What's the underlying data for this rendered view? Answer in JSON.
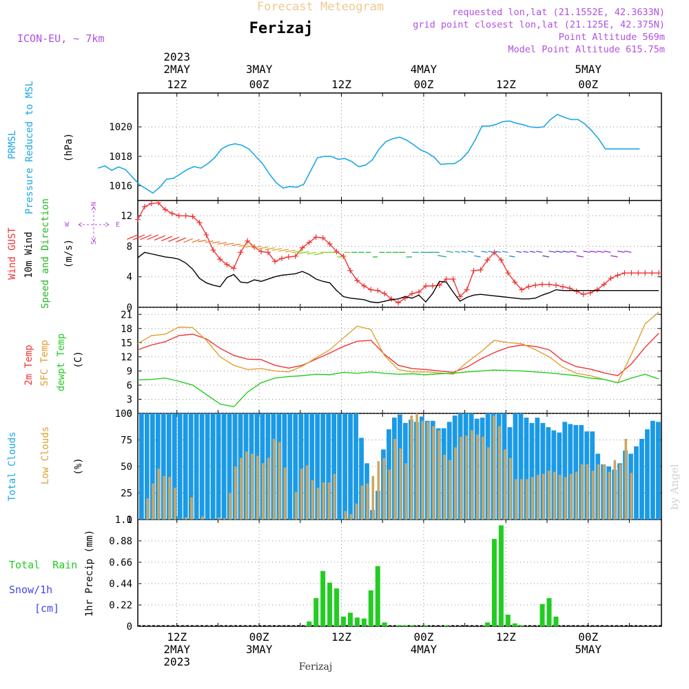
{
  "header": {
    "super_title": "Forecast Meteogram",
    "location": "Ferizaj",
    "model": "ICON-EU, ~ 7km",
    "info_lines": [
      "requested lon,lat (21.1552E, 42.3633N)",
      "grid point closest lon,lat (21.125E, 42.375N)",
      "Point Altitude 569m",
      "Model Point Altitude 615.75m"
    ],
    "footer_location": "Ferizaj",
    "watermark": "by Angel"
  },
  "colors": {
    "pressure": "#1aa7e6",
    "gust": "#ee3333",
    "wind": "#000000",
    "direction_label": "#22bb22",
    "temp": "#ee3333",
    "sfc_temp": "#e0a030",
    "dewpoint": "#22cc22",
    "total_clouds": "#1a9ae6",
    "low_clouds": "#cfa65e",
    "rain": "#22cc22",
    "snow_label": "#4444ee",
    "info": "#b050e0"
  },
  "time_axis": {
    "top_ticks": [
      {
        "day": "2023\n2MAY",
        "hour": "12Z",
        "t": 12
      },
      {
        "day": "3MAY",
        "hour": "00Z",
        "t": 24
      },
      {
        "day": "",
        "hour": "12Z",
        "t": 36
      },
      {
        "day": "4MAY",
        "hour": "00Z",
        "t": 48
      },
      {
        "day": "",
        "hour": "12Z",
        "t": 60
      },
      {
        "day": "5MAY",
        "hour": "00Z",
        "t": 72
      }
    ],
    "bottom_ticks": [
      {
        "hour": "12Z",
        "day": "2MAY",
        "year": "2023",
        "t": 12
      },
      {
        "hour": "00Z",
        "day": "3MAY",
        "year": "",
        "t": 24
      },
      {
        "hour": "12Z",
        "day": "",
        "year": "",
        "t": 36
      },
      {
        "hour": "00Z",
        "day": "4MAY",
        "year": "",
        "t": 48
      },
      {
        "hour": "12Z",
        "day": "",
        "year": "",
        "t": 60
      },
      {
        "hour": "00Z",
        "day": "5MAY",
        "year": "",
        "t": 72
      }
    ]
  },
  "panels": {
    "pressure": {
      "label1": "PRMSL",
      "label2": "Pressure Reduced to MSL",
      "unit": "(hPa)"
    },
    "wind": {
      "gust_label": "Wind GUST",
      "wind_label": "10m Wind",
      "dir_label": "Speed and Direction",
      "unit": "(m/s)",
      "compass_n": "N",
      "compass_s": "S",
      "compass_w": "W",
      "compass_e": "E"
    },
    "temp": {
      "t2m_label": "2m Temp",
      "sfc_label": "SFC Temp",
      "dew_label": "dewpt Temp",
      "unit": "(C)"
    },
    "clouds": {
      "total_label": "Total Clouds",
      "low_label": "Low Clouds",
      "unit": "(%)"
    },
    "precip": {
      "rain_label": "Total  Rain",
      "snow_label": "Snow/1h",
      "snow_unit": "[cm]",
      "axis_label": "1hr Precip (mm)"
    }
  },
  "chart_data": [
    {
      "type": "line",
      "title": "PRMSL Pressure Reduced to MSL",
      "ylabel": "(hPa)",
      "ylim": [
        1015,
        1022.3
      ],
      "yticks": [
        1016,
        1018,
        1020
      ],
      "x": [
        1,
        2,
        3,
        4,
        5,
        6,
        7,
        8,
        9,
        10,
        11,
        12,
        13,
        14,
        15,
        16,
        17,
        18,
        19,
        20,
        21,
        22,
        23,
        24,
        25,
        26,
        27,
        28,
        29,
        30,
        31,
        32,
        33,
        34,
        35,
        36,
        37,
        38,
        39,
        40,
        41,
        42,
        43,
        44,
        45,
        46,
        47,
        48,
        49,
        50,
        51,
        52,
        53,
        54,
        55,
        56,
        57,
        58,
        59,
        60,
        61,
        62,
        63,
        64,
        65,
        66,
        67,
        68,
        69,
        70,
        70,
        71,
        72,
        73,
        74,
        75,
        76,
        77,
        78,
        79
      ],
      "series": [
        {
          "name": "PRMSL",
          "values": [
            1017.2,
            1017.35,
            1017.05,
            1017.28,
            1017.1,
            1016.6,
            1016.1,
            1015.8,
            1015.5,
            1015.9,
            1016.45,
            1016.5,
            1016.8,
            1017.1,
            1017.3,
            1017.2,
            1017.5,
            1017.9,
            1018.5,
            1018.75,
            1018.85,
            1018.75,
            1018.5,
            1018.0,
            1017.5,
            1016.8,
            1016.2,
            1015.85,
            1015.95,
            1015.9,
            1016.1,
            1017.0,
            1017.9,
            1018.0,
            1018.0,
            1017.8,
            1017.85,
            1017.65,
            1017.3,
            1017.4,
            1017.75,
            1018.5,
            1019.0,
            1019.2,
            1019.3,
            1019.1,
            1018.8,
            1018.45,
            1018.25,
            1017.95,
            1017.45,
            1017.5,
            1017.5,
            1017.8,
            1018.3,
            1019.1,
            1020.05,
            1020.05,
            1020.15,
            1020.35,
            1020.4,
            1020.25,
            1020.15,
            1020.0,
            1019.95,
            1020.0,
            1020.5,
            1020.85,
            1020.65,
            1020.5,
            1020.5,
            1020.2,
            1019.75,
            1019.2,
            1018.5,
            1018.5,
            1018.5,
            1018.5,
            1018.5,
            1018.5
          ]
        }
      ]
    },
    {
      "type": "line",
      "title": "Wind GUST / 10m Wind Speed and Direction",
      "ylabel": "(m/s)",
      "ylim": [
        0,
        14
      ],
      "yticks": [
        0,
        4,
        8,
        12
      ],
      "x_hours": [
        0,
        1,
        2,
        3,
        4,
        5,
        6,
        7,
        8,
        9,
        10,
        11,
        12,
        13,
        14,
        15,
        16,
        17,
        18,
        19,
        20,
        21,
        22,
        23,
        24,
        25,
        26,
        27,
        28,
        29,
        30,
        31,
        32,
        33,
        34,
        35,
        36,
        37,
        38,
        39,
        40,
        41,
        42,
        43,
        44,
        45,
        46,
        47,
        48,
        49,
        50,
        51,
        52,
        53,
        54,
        55,
        56,
        57,
        58,
        59,
        60,
        61,
        62,
        63,
        64,
        65,
        66,
        67,
        68,
        69,
        70,
        71,
        72,
        73,
        74,
        75,
        76
      ],
      "series": [
        {
          "name": "Wind GUST",
          "values": [
            11.5,
            13.2,
            13.6,
            13.7,
            12.8,
            12.3,
            12.0,
            12.0,
            11.9,
            11.1,
            9.5,
            7.5,
            6.3,
            5.6,
            5.1,
            7.2,
            8.7,
            7.9,
            7.3,
            7.2,
            6.0,
            6.4,
            6.6,
            6.7,
            7.8,
            8.5,
            9.2,
            9.1,
            8.3,
            7.3,
            6.7,
            4.8,
            3.5,
            2.8,
            2.3,
            2.2,
            1.8,
            1.1,
            0.6,
            1.2,
            1.8,
            2.0,
            2.8,
            2.8,
            2.9,
            3.7,
            3.7,
            1.4,
            2.3,
            4.8,
            4.9,
            6.2,
            7.2,
            6.2,
            4.5,
            3.3,
            2.3,
            2.7,
            2.9,
            3.0,
            3.0,
            2.9,
            2.7,
            2.5,
            2.1,
            1.7,
            1.9,
            2.3,
            3.0,
            3.8,
            4.2,
            4.5,
            4.5,
            4.5,
            4.5,
            4.5,
            4.5
          ]
        },
        {
          "name": "10m Wind",
          "values": [
            6.5,
            7.2,
            7.0,
            6.8,
            6.6,
            6.5,
            6.3,
            5.8,
            5.0,
            3.8,
            3.2,
            2.9,
            2.7,
            3.9,
            4.3,
            3.3,
            3.2,
            3.6,
            3.4,
            3.7,
            4.0,
            4.2,
            4.3,
            4.4,
            4.7,
            4.3,
            3.7,
            3.4,
            3.2,
            2.2,
            1.4,
            1.2,
            1.1,
            1.0,
            0.7,
            0.6,
            0.8,
            1.0,
            1.1,
            1.4,
            1.2,
            1.6,
            0.7,
            1.8,
            3.4,
            3.3,
            2.0,
            0.8,
            1.3,
            1.6,
            1.7,
            1.6,
            1.5,
            1.4,
            1.3,
            1.2,
            1.1,
            1.1,
            1.2,
            1.6,
            1.9,
            2.3,
            2.2,
            2.2,
            2.2,
            2.2,
            2.2,
            2.2,
            2.2,
            2.2,
            2.2,
            2.2,
            2.2,
            2.2,
            2.2,
            2.2,
            2.2
          ]
        }
      ]
    },
    {
      "type": "line",
      "title": "2m Temp / SFC Temp / dewpt Temp",
      "ylabel": "(C)",
      "ylim": [
        0,
        22.5
      ],
      "yticks": [
        0,
        3,
        6,
        9,
        12,
        15,
        18,
        21
      ],
      "x_hours": [
        0,
        2,
        4,
        6,
        8,
        10,
        12,
        14,
        16,
        18,
        20,
        22,
        24,
        26,
        28,
        30,
        32,
        34,
        36,
        38,
        40,
        42,
        44,
        46,
        48,
        50,
        52,
        54,
        56,
        58,
        60,
        62,
        64,
        66,
        68,
        70,
        72,
        74,
        76
      ],
      "series": [
        {
          "name": "2m Temp",
          "values": [
            13.5,
            14.5,
            15.2,
            16.5,
            16.8,
            15.8,
            13.8,
            12.3,
            11.5,
            11.4,
            10.2,
            9.6,
            10.2,
            11.5,
            12.8,
            14.2,
            15.3,
            15.5,
            12.5,
            10.2,
            9.5,
            9.3,
            9.0,
            8.7,
            9.8,
            11.5,
            12.9,
            14.0,
            14.5,
            14.2,
            13.5,
            11.2,
            9.9,
            9.4,
            8.6,
            8.0,
            10.5,
            14.0,
            17.0
          ]
        },
        {
          "name": "SFC Temp",
          "values": [
            14.8,
            16.5,
            16.8,
            18.3,
            18.2,
            15.5,
            12.0,
            10.2,
            9.3,
            9.5,
            9.0,
            8.8,
            10.0,
            11.8,
            13.5,
            16.0,
            18.5,
            17.8,
            12.2,
            9.3,
            8.8,
            8.8,
            8.6,
            8.3,
            10.8,
            13.0,
            15.5,
            15.0,
            14.8,
            13.5,
            12.0,
            9.8,
            8.5,
            8.0,
            7.2,
            6.5,
            12.5,
            19.0,
            21.5
          ]
        },
        {
          "name": "dewpt Temp",
          "values": [
            7.1,
            7.2,
            7.5,
            6.8,
            6.0,
            4.0,
            2.0,
            1.4,
            4.5,
            6.5,
            7.5,
            7.8,
            8.0,
            8.3,
            8.2,
            8.7,
            8.5,
            8.8,
            8.5,
            8.3,
            8.4,
            8.2,
            8.4,
            8.5,
            8.8,
            9.0,
            9.2,
            9.1,
            9.0,
            8.8,
            8.6,
            8.3,
            8.0,
            7.5,
            7.2,
            6.5,
            7.5,
            8.3,
            7.3
          ]
        }
      ]
    },
    {
      "type": "bar",
      "title": "Total Clouds / Low Clouds",
      "ylabel": "(%)",
      "ylim": [
        0,
        100
      ],
      "yticks": [
        0,
        25,
        50,
        75,
        100
      ],
      "series": [
        {
          "name": "Total Clouds",
          "values": [
            100,
            100,
            100,
            100,
            100,
            100,
            100,
            100,
            100,
            100,
            100,
            100,
            100,
            100,
            100,
            100,
            100,
            100,
            100,
            100,
            100,
            100,
            100,
            100,
            100,
            100,
            100,
            100,
            100,
            100,
            100,
            100,
            100,
            100,
            100,
            100,
            100,
            100,
            100,
            100,
            77,
            53,
            9,
            27,
            66,
            85,
            96,
            99,
            91,
            94,
            92,
            97,
            93,
            93,
            86,
            86,
            92,
            98,
            100,
            100,
            100,
            95,
            96,
            100,
            100,
            100,
            100,
            87,
            100,
            100,
            96,
            91,
            96,
            91,
            87,
            84,
            82,
            92,
            90,
            89,
            89,
            83,
            83,
            62,
            52,
            50,
            47,
            53,
            65,
            62,
            69,
            76,
            85,
            93,
            92
          ]
        },
        {
          "name": "Low Clouds",
          "values": [
            0,
            20,
            34,
            48,
            41,
            40,
            30,
            0,
            2,
            21,
            0,
            3,
            0,
            0,
            2,
            1,
            25,
            50,
            58,
            64,
            62,
            60,
            53,
            58,
            76,
            73,
            49,
            0,
            26,
            48,
            51,
            37,
            30,
            35,
            35,
            43,
            0,
            8,
            5,
            15,
            32,
            34,
            41,
            55,
            58,
            47,
            76,
            67,
            53,
            98,
            100,
            93,
            92,
            88,
            84,
            61,
            56,
            68,
            78,
            79,
            84,
            80,
            78,
            68,
            98,
            88,
            66,
            58,
            38,
            38,
            38,
            40,
            42,
            43,
            46,
            45,
            42,
            40,
            43,
            45,
            52,
            52,
            46,
            52,
            52,
            45,
            56,
            52,
            76,
            44
          ]
        }
      ]
    },
    {
      "type": "bar",
      "title": "1hr Precip",
      "ylabel": "1hr Precip (mm)",
      "ylim": [
        0,
        1.1
      ],
      "yticks": [
        0,
        0.22,
        0.44,
        0.66,
        0.88,
        1.1
      ],
      "categories_hours": [
        25,
        26,
        27,
        28,
        29,
        30,
        31,
        32,
        33,
        34,
        35,
        36,
        38,
        39,
        40,
        42,
        45,
        51,
        52,
        53,
        54,
        55,
        56,
        59,
        60,
        61
      ],
      "series": [
        {
          "name": "Total Rain",
          "values": [
            0.05,
            0.29,
            0.57,
            0.45,
            0.39,
            0.1,
            0.14,
            0.09,
            0.08,
            0.37,
            0.62,
            0.04,
            0.01,
            0.01,
            0.01,
            0.01,
            0.01,
            0.04,
            0.9,
            1.04,
            0.12,
            0.03,
            0.01,
            0.23,
            0.29,
            0.1
          ]
        }
      ]
    }
  ]
}
